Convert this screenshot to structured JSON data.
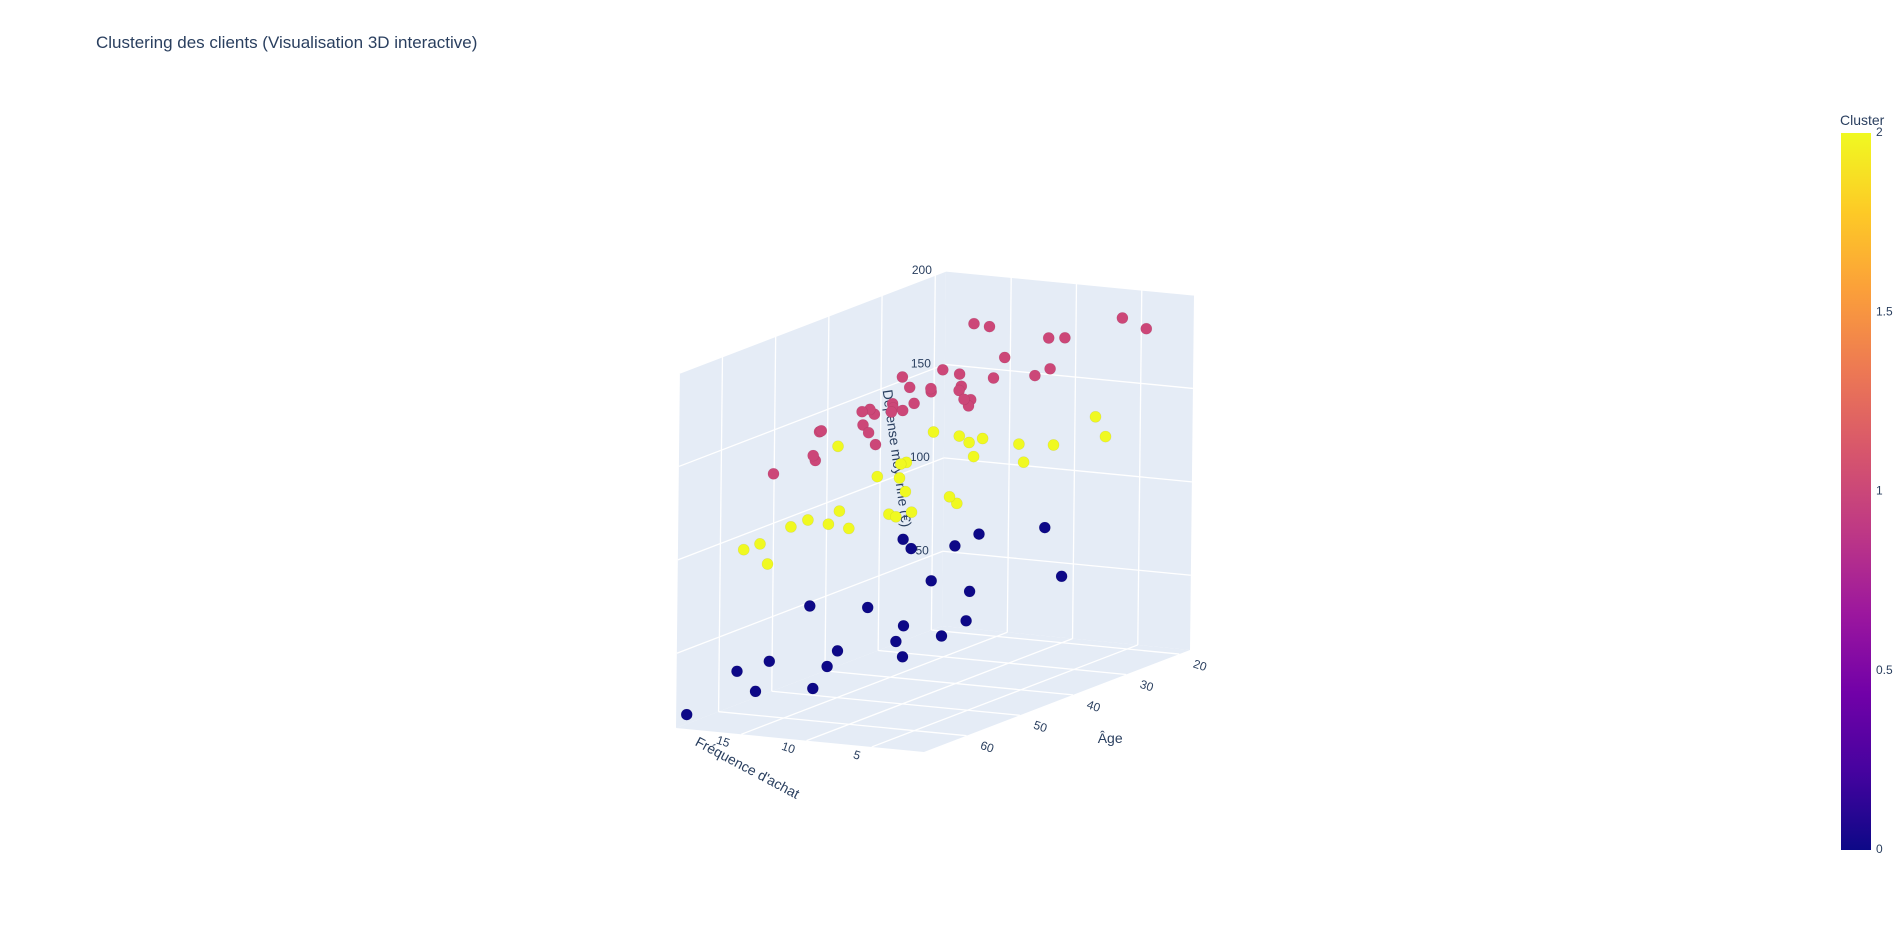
{
  "chart_data": {
    "type": "scatter",
    "title": "Clustering des clients (Visualisation 3D interactive)",
    "axes": {
      "x": {
        "label": "Âge",
        "range": [
          18,
          68
        ],
        "ticks": [
          20,
          30,
          40,
          50,
          60
        ]
      },
      "y": {
        "label": "Fréquence d'achat",
        "range": [
          1,
          20
        ],
        "ticks": [
          5,
          10,
          15
        ]
      },
      "z": {
        "label": "Dépense moyenne (€)",
        "range": [
          10,
          200
        ],
        "ticks": [
          50,
          100,
          150,
          200
        ]
      }
    },
    "colorbar": {
      "title": "Cluster",
      "range": [
        0,
        2
      ],
      "ticks": [
        "0",
        "0.5",
        "1",
        "1.5",
        "2"
      ]
    },
    "cluster_colors": {
      "0": "#0d0887",
      "1": "#cc4778",
      "2": "#f0f921"
    },
    "grid": true,
    "series": [
      {
        "cluster": 1,
        "points": [
          [
            29,
            2,
            199
          ],
          [
            22,
            3,
            185
          ],
          [
            45,
            1,
            190
          ],
          [
            60,
            4,
            192
          ],
          [
            33,
            6,
            190
          ],
          [
            48,
            8,
            188
          ],
          [
            55,
            3,
            183
          ],
          [
            25,
            8,
            180
          ],
          [
            38,
            5,
            176
          ],
          [
            42,
            9,
            172
          ],
          [
            50,
            11,
            170
          ],
          [
            58,
            10,
            168
          ],
          [
            24,
            13,
            165
          ],
          [
            30,
            14,
            162
          ],
          [
            35,
            12,
            160
          ],
          [
            46,
            14,
            158
          ],
          [
            52,
            12,
            156
          ],
          [
            63,
            7,
            165
          ],
          [
            40,
            15,
            154
          ],
          [
            28,
            17,
            150
          ],
          [
            62,
            12,
            152
          ],
          [
            37,
            18,
            148
          ],
          [
            55,
            15,
            145
          ],
          [
            44,
            19,
            143
          ],
          [
            60,
            16,
            140
          ],
          [
            26,
            20,
            152
          ],
          [
            32,
            17,
            155
          ],
          [
            48,
            6,
            170
          ],
          [
            56,
            14,
            160
          ],
          [
            22,
            15,
            178
          ],
          [
            39,
            10,
            161
          ],
          [
            65,
            5,
            186
          ],
          [
            20,
            17,
            176
          ],
          [
            41,
            13,
            159
          ],
          [
            36,
            19,
            145
          ],
          [
            53,
            9,
            171
          ],
          [
            31,
            11,
            163
          ]
        ]
      },
      {
        "cluster": 2,
        "points": [
          [
            27,
            4,
            132
          ],
          [
            61,
            5,
            128
          ],
          [
            35,
            7,
            125
          ],
          [
            50,
            6,
            120
          ],
          [
            22,
            10,
            118
          ],
          [
            44,
            9,
            115
          ],
          [
            33,
            12,
            130
          ],
          [
            58,
            11,
            112
          ],
          [
            40,
            14,
            110
          ],
          [
            25,
            16,
            122
          ],
          [
            52,
            15,
            105
          ],
          [
            30,
            18,
            112
          ],
          [
            63,
            17,
            102
          ],
          [
            46,
            19,
            98
          ],
          [
            38,
            20,
            128
          ],
          [
            55,
            19,
            95
          ],
          [
            20,
            20,
            116
          ],
          [
            48,
            12,
            108
          ],
          [
            42,
            8,
            135
          ],
          [
            36,
            16,
            119
          ],
          [
            59,
            7,
            122
          ],
          [
            28,
            13,
            126
          ],
          [
            51,
            10,
            132
          ],
          [
            45,
            17,
            103
          ],
          [
            33,
            19,
            107
          ],
          [
            24,
            6,
            138
          ],
          [
            64,
            13,
            118
          ],
          [
            31,
            9,
            129
          ],
          [
            56,
            18,
            86
          ]
        ]
      },
      {
        "cluster": 0,
        "points": [
          [
            21,
            11,
            72
          ],
          [
            35,
            4,
            66
          ],
          [
            48,
            6,
            55
          ],
          [
            60,
            3,
            62
          ],
          [
            26,
            14,
            72
          ],
          [
            40,
            9,
            60
          ],
          [
            55,
            8,
            42
          ],
          [
            30,
            16,
            50
          ],
          [
            45,
            12,
            45
          ],
          [
            62,
            12,
            30
          ],
          [
            37,
            18,
            42
          ],
          [
            50,
            15,
            35
          ],
          [
            58,
            18,
            20
          ],
          [
            28,
            19,
            68
          ],
          [
            43,
            20,
            48
          ],
          [
            53,
            19,
            30
          ],
          [
            64,
            17,
            38
          ],
          [
            33,
            13,
            74
          ],
          [
            47,
            17,
            22
          ],
          [
            24,
            20,
            58
          ],
          [
            66,
            20,
            15
          ],
          [
            39,
            15,
            28
          ]
        ]
      }
    ]
  }
}
